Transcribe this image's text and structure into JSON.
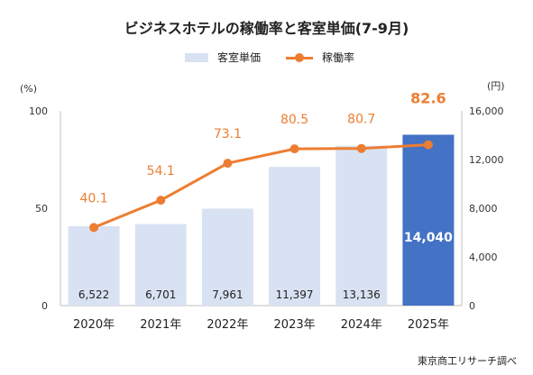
{
  "chart_data": {
    "type": "bar",
    "title": "ビジネスホテルの稼働率と客室単価(7-9月)",
    "categories": [
      "2020年",
      "2021年",
      "2022年",
      "2023年",
      "2024年",
      "2025年"
    ],
    "series": [
      {
        "name": "客室単価",
        "type": "bar",
        "axis": "right",
        "values": [
          6522,
          6701,
          7961,
          11397,
          13136,
          14040
        ],
        "labels": [
          "6,522",
          "6,701",
          "7,961",
          "11,397",
          "13,136",
          "14,040"
        ],
        "colors": [
          "#d9e2f3",
          "#d9e2f3",
          "#d9e2f3",
          "#d9e2f3",
          "#d9e2f3",
          "#4472c4"
        ]
      },
      {
        "name": "稼働率",
        "type": "line",
        "axis": "left",
        "values": [
          40.1,
          54.1,
          73.1,
          80.5,
          80.7,
          82.6
        ],
        "labels": [
          "40.1",
          "54.1",
          "73.1",
          "80.5",
          "80.7",
          "82.6"
        ],
        "color": "#ed7d31"
      }
    ],
    "y_left": {
      "unit": "(%)",
      "ticks": [
        0,
        50,
        100
      ],
      "tick_labels": [
        "0",
        "50",
        "100"
      ],
      "ylim": [
        0,
        100
      ]
    },
    "y_right": {
      "unit": "(円)",
      "ticks": [
        0,
        4000,
        8000,
        12000,
        16000
      ],
      "tick_labels": [
        "0",
        "4,000",
        "8,000",
        "12,000",
        "16,000"
      ],
      "ylim": [
        0,
        16000
      ]
    },
    "grid": false,
    "legend_position": "top"
  },
  "source": "東京商工リサーチ調べ"
}
